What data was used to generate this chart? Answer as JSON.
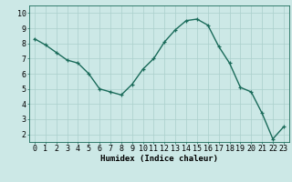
{
  "x": [
    0,
    1,
    2,
    3,
    4,
    5,
    6,
    7,
    8,
    9,
    10,
    11,
    12,
    13,
    14,
    15,
    16,
    17,
    18,
    19,
    20,
    21,
    22,
    23
  ],
  "y": [
    8.3,
    7.9,
    7.4,
    6.9,
    6.7,
    6.0,
    5.0,
    4.8,
    4.6,
    5.3,
    6.3,
    7.0,
    8.1,
    8.9,
    9.5,
    9.6,
    9.2,
    7.8,
    6.7,
    5.1,
    4.8,
    3.4,
    1.7,
    2.5
  ],
  "xlabel": "Humidex (Indice chaleur)",
  "xlim": [
    -0.5,
    23.5
  ],
  "ylim": [
    1.5,
    10.5
  ],
  "yticks": [
    2,
    3,
    4,
    5,
    6,
    7,
    8,
    9,
    10
  ],
  "xticks": [
    0,
    1,
    2,
    3,
    4,
    5,
    6,
    7,
    8,
    9,
    10,
    11,
    12,
    13,
    14,
    15,
    16,
    17,
    18,
    19,
    20,
    21,
    22,
    23
  ],
  "line_color": "#1a6b5a",
  "marker": "+",
  "bg_color": "#cce8e6",
  "grid_color": "#aacfcc",
  "xlabel_fontsize": 6.5,
  "tick_fontsize": 6,
  "linewidth": 1.0,
  "markersize": 3.5,
  "markeredgewidth": 0.9
}
